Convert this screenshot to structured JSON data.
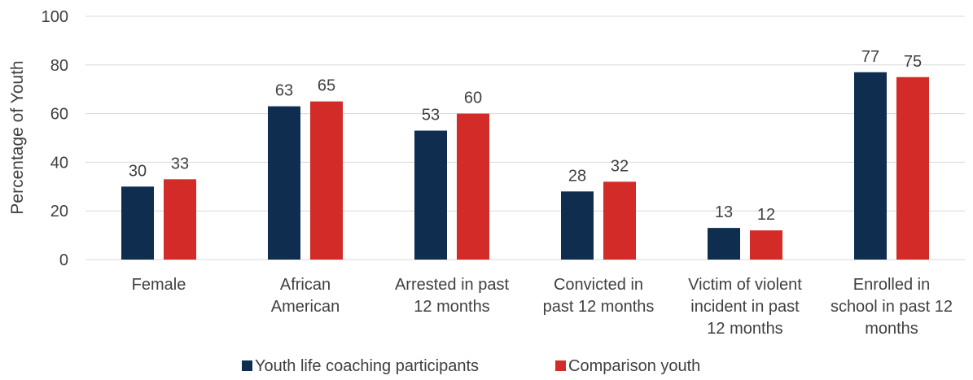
{
  "chart_data": {
    "type": "bar",
    "title": "",
    "xlabel": "",
    "ylabel": "Percentage of Youth",
    "ylim": [
      0,
      100
    ],
    "yticks": [
      0,
      20,
      40,
      60,
      80,
      100
    ],
    "grid": true,
    "legend_position": "bottom",
    "categories": [
      [
        "Female"
      ],
      [
        "African",
        "American"
      ],
      [
        "Arrested in past",
        "12 months"
      ],
      [
        "Convicted in",
        "past 12 months"
      ],
      [
        "Victim of violent",
        "incident in past",
        "12 months"
      ],
      [
        "Enrolled in",
        "school in past 12",
        "months"
      ]
    ],
    "series": [
      {
        "name": "Youth life coaching participants",
        "color": "#0f2d4f",
        "values": [
          30,
          63,
          53,
          28,
          13,
          77
        ]
      },
      {
        "name": "Comparison youth",
        "color": "#d32b27",
        "values": [
          33,
          65,
          60,
          32,
          12,
          75
        ]
      }
    ]
  }
}
